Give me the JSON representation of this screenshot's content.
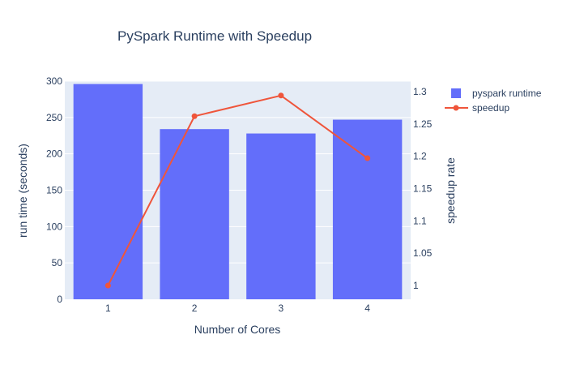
{
  "chart_data": {
    "type": "bar+line",
    "title": "PySpark Runtime with Speedup",
    "xlabel": "Number of Cores",
    "ylabel": "run time (seconds)",
    "y2label": "speedup rate",
    "categories": [
      "1",
      "2",
      "3",
      "4"
    ],
    "series": [
      {
        "name": "pyspark runtime",
        "type": "bar",
        "axis": "y",
        "color": "#636efa",
        "values": [
          296,
          234,
          228,
          247
        ]
      },
      {
        "name": "speedup",
        "type": "line+markers",
        "axis": "y2",
        "color": "#ef553b",
        "values": [
          1.0,
          1.262,
          1.294,
          1.197
        ]
      }
    ],
    "ylim": [
      0,
      300
    ],
    "yticks": [
      0,
      50,
      100,
      150,
      200,
      250,
      300
    ],
    "y2lim": [
      1.0,
      1.3
    ],
    "y2ticks": [
      1,
      1.05,
      1.1,
      1.15,
      1.2,
      1.25,
      1.3
    ],
    "y2tick_labels": [
      "1",
      "1.05",
      "1.1",
      "1.15",
      "1.2",
      "1.25",
      "1.3"
    ],
    "grid": true,
    "plot_bgcolor": "#e5ecf6",
    "legend_position": "top-right"
  }
}
